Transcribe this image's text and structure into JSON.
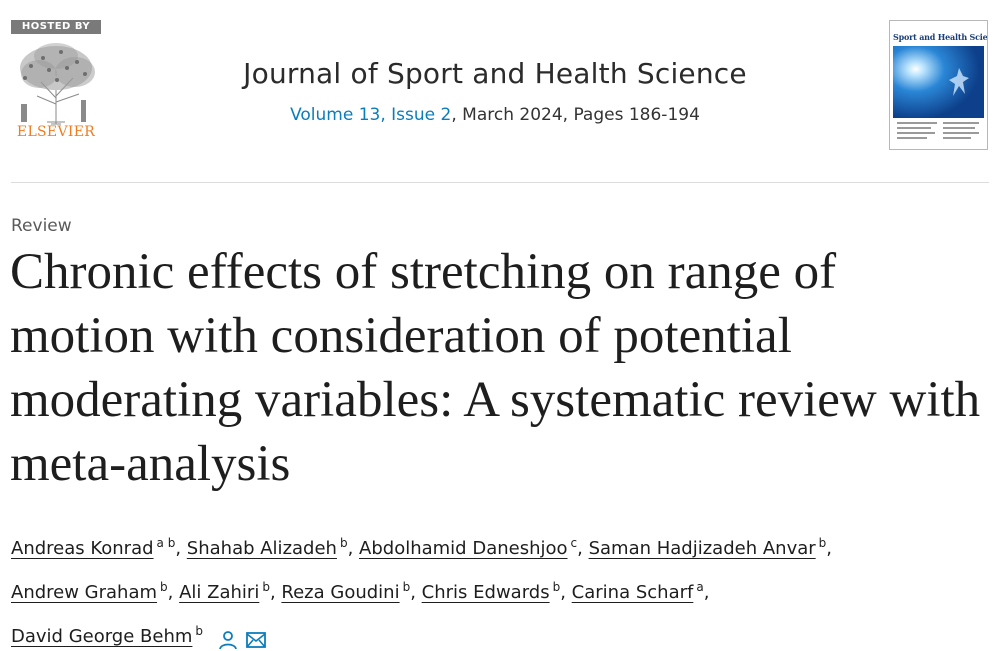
{
  "publisher": {
    "badge": "HOSTED BY",
    "name": "ELSEVIER",
    "logo_icon": "elsevier-tree-icon",
    "brand_color": "#f07c1e"
  },
  "journal": {
    "name": "Journal of Sport and Health Science",
    "volume_issue_link": "Volume 13, Issue 2",
    "issue_details": ", March 2024, Pages 186-194",
    "link_color": "#0c7dbb"
  },
  "cover": {
    "title": "Sport and Health Science"
  },
  "article": {
    "type": "Review",
    "title": "Chronic effects of stretching on range of motion with consideration of potential moderating variables: A systematic review with meta-analysis"
  },
  "authors": [
    {
      "name": "Andreas Konrad",
      "aff": "a b",
      "sep": ", "
    },
    {
      "name": "Shahab Alizadeh",
      "aff": "b",
      "sep": ", "
    },
    {
      "name": "Abdolhamid Daneshjoo",
      "aff": "c",
      "sep": ", "
    },
    {
      "name": "Saman Hadjizadeh Anvar",
      "aff": "b",
      "sep": ","
    },
    {
      "name": "Andrew Graham",
      "aff": "b",
      "sep": ", "
    },
    {
      "name": "Ali Zahiri",
      "aff": "b",
      "sep": ", "
    },
    {
      "name": "Reza Goudini",
      "aff": "b",
      "sep": ", "
    },
    {
      "name": "Chris Edwards",
      "aff": "b",
      "sep": ", "
    },
    {
      "name": "Carina Scharf",
      "aff": "a",
      "sep": ","
    },
    {
      "name": "David George Behm",
      "aff": "b",
      "sep": ""
    }
  ],
  "contact_icons": [
    "person-icon",
    "email-icon"
  ]
}
